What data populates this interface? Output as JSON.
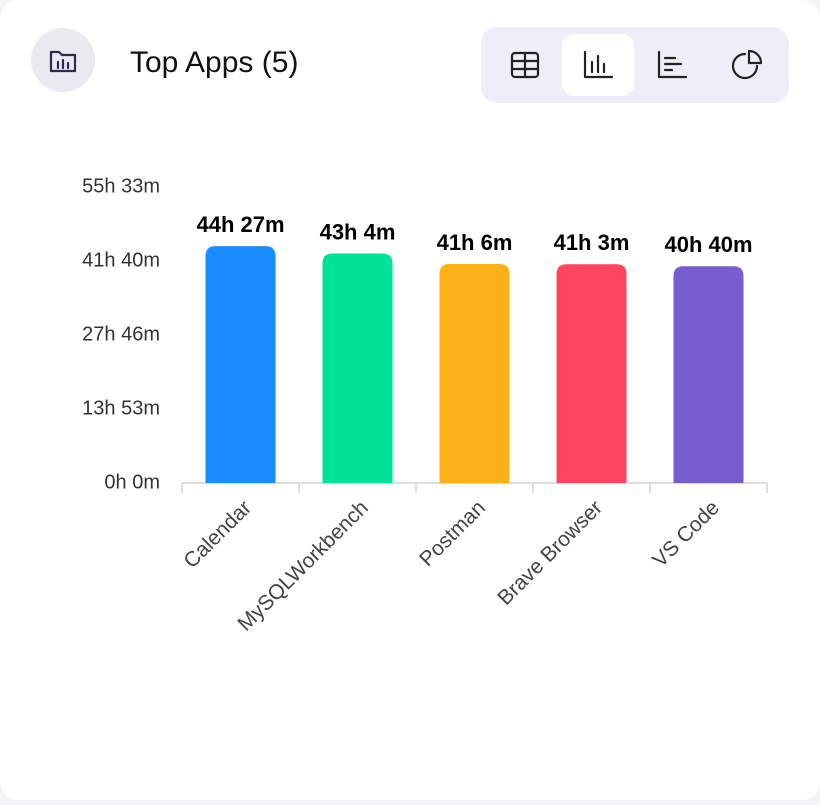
{
  "header": {
    "title": "Top Apps (5)"
  },
  "chart_data": {
    "type": "bar",
    "categories": [
      "Calendar",
      "MySQLWorkbench",
      "Postman",
      "Brave Browser",
      "VS Code"
    ],
    "values": [
      2667,
      2584,
      2466,
      2463,
      2440
    ],
    "value_labels": [
      "44h 27m",
      "43h 4m",
      "41h 6m",
      "41h 3m",
      "40h 40m"
    ],
    "colors": [
      "#1a8cff",
      "#00e396",
      "#feb019",
      "#ff4560",
      "#775dd0"
    ],
    "ylim": [
      0,
      3333
    ],
    "yticks": [
      {
        "value": 0,
        "label": "0h 0m"
      },
      {
        "value": 833,
        "label": "13h 53m"
      },
      {
        "value": 1666,
        "label": "27h 46m"
      },
      {
        "value": 2500,
        "label": "41h 40m"
      },
      {
        "value": 3333,
        "label": "55h 33m"
      }
    ]
  }
}
